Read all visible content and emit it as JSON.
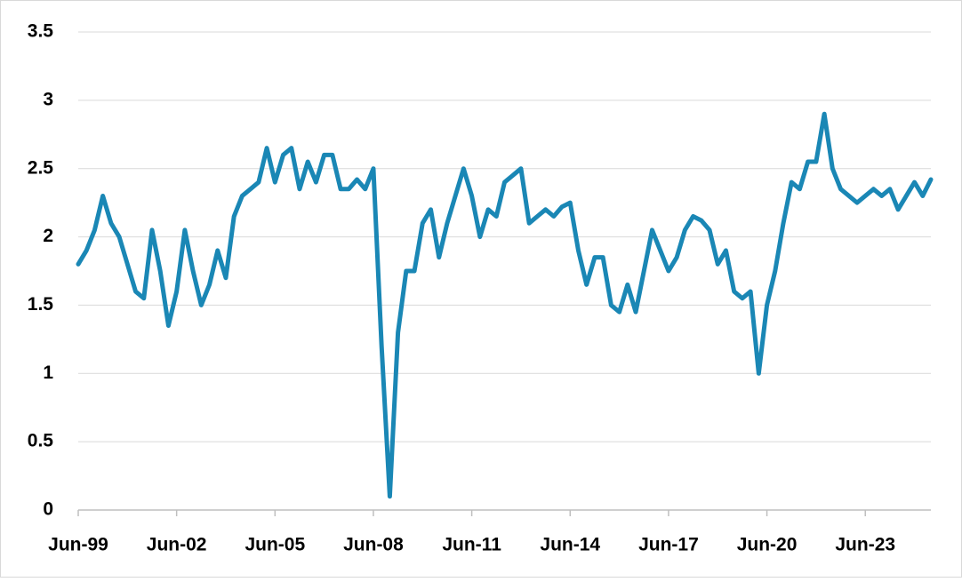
{
  "chart_data": {
    "type": "line",
    "categories": [
      "Jun-99",
      null,
      null,
      null,
      null,
      null,
      null,
      null,
      null,
      null,
      null,
      null,
      "Jun-02",
      null,
      null,
      null,
      null,
      null,
      null,
      null,
      null,
      null,
      null,
      null,
      "Jun-05",
      null,
      null,
      null,
      null,
      null,
      null,
      null,
      null,
      null,
      null,
      null,
      "Jun-08",
      null,
      null,
      null,
      null,
      null,
      null,
      null,
      null,
      null,
      null,
      null,
      "Jun-11",
      null,
      null,
      null,
      null,
      null,
      null,
      null,
      null,
      null,
      null,
      null,
      "Jun-14",
      null,
      null,
      null,
      null,
      null,
      null,
      null,
      null,
      null,
      null,
      null,
      "Jun-17",
      null,
      null,
      null,
      null,
      null,
      null,
      null,
      null,
      null,
      null,
      null,
      "Jun-20",
      null,
      null,
      null,
      null,
      null,
      null,
      null,
      null,
      null,
      null,
      null,
      "Jun-23",
      null,
      null,
      null,
      null,
      null,
      null,
      null,
      null
    ],
    "series": [
      {
        "color": "#1a87b5",
        "values": [
          1.8,
          1.9,
          2.05,
          2.3,
          2.1,
          2.0,
          1.8,
          1.6,
          1.55,
          2.05,
          1.75,
          1.35,
          1.6,
          2.05,
          1.75,
          1.5,
          1.65,
          1.9,
          1.7,
          2.15,
          2.3,
          2.35,
          2.4,
          2.65,
          2.4,
          2.6,
          2.65,
          2.35,
          2.55,
          2.4,
          2.6,
          2.6,
          2.35,
          2.35,
          2.42,
          2.35,
          2.5,
          1.2,
          0.1,
          1.3,
          1.75,
          1.75,
          2.1,
          2.2,
          1.85,
          2.1,
          2.3,
          2.5,
          2.3,
          2.0,
          2.2,
          2.15,
          2.4,
          2.45,
          2.5,
          2.1,
          2.15,
          2.2,
          2.15,
          2.22,
          2.25,
          1.9,
          1.65,
          1.85,
          1.85,
          1.5,
          1.45,
          1.65,
          1.45,
          1.75,
          2.05,
          1.9,
          1.75,
          1.85,
          2.05,
          2.15,
          2.12,
          2.05,
          1.8,
          1.9,
          1.6,
          1.55,
          1.6,
          1.0,
          1.5,
          1.75,
          2.1,
          2.4,
          2.35,
          2.55,
          2.55,
          2.9,
          2.5,
          2.35,
          2.3,
          2.25,
          2.3,
          2.35,
          2.3,
          2.35,
          2.2,
          2.3,
          2.4,
          2.3,
          2.42
        ]
      }
    ],
    "ylim": [
      0,
      3.5
    ],
    "yticks": [
      0,
      0.5,
      1,
      1.5,
      2,
      2.5,
      3,
      3.5
    ],
    "grid": true
  }
}
